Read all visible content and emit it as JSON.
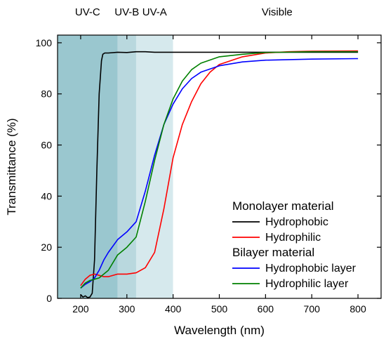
{
  "chart_data": {
    "type": "line",
    "title": "",
    "xlabel": "Wavelength (nm)",
    "ylabel": "Transmittance (%)",
    "xlim": [
      150,
      850
    ],
    "ylim": [
      0,
      103
    ],
    "x_ticks": [
      200,
      300,
      400,
      500,
      600,
      700,
      800
    ],
    "y_ticks": [
      0,
      20,
      40,
      60,
      80,
      100
    ],
    "grid": false,
    "legend_placement": "bottom-right",
    "regions": [
      {
        "label": "UV-C",
        "from": 150,
        "to": 280,
        "color": "#9ac7cf"
      },
      {
        "label": "UV-B",
        "from": 280,
        "to": 320,
        "color": "#b9d8de"
      },
      {
        "label": "UV-A",
        "from": 320,
        "to": 400,
        "color": "#d6e9ed"
      },
      {
        "label": "Visible",
        "from": 400,
        "to": 850,
        "color": "#ffffff"
      }
    ],
    "legend_groups": [
      {
        "title": "Monolayer material",
        "series": [
          "Hydrophobic",
          "Hydrophilic"
        ]
      },
      {
        "title": "Bilayer material",
        "series": [
          "Hydrophobic layer",
          "Hydrophilic layer"
        ]
      }
    ],
    "series": [
      {
        "name": "Hydrophobic",
        "color": "#000000",
        "x": [
          200,
          205,
          210,
          215,
          220,
          225,
          230,
          235,
          240,
          245,
          248,
          252,
          260,
          280,
          300,
          320,
          340,
          360,
          400,
          500,
          600,
          700,
          800
        ],
        "y": [
          1.5,
          0.5,
          1.0,
          0.3,
          0.5,
          2,
          15,
          50,
          80,
          93,
          95.5,
          96,
          96,
          96.3,
          96.2,
          96.5,
          96.5,
          96.3,
          96.3,
          96.3,
          96.3,
          96.3,
          96.3
        ]
      },
      {
        "name": "Hydrophilic",
        "color": "#ff0000",
        "x": [
          200,
          210,
          220,
          230,
          240,
          250,
          260,
          280,
          300,
          320,
          340,
          360,
          380,
          400,
          420,
          440,
          460,
          480,
          500,
          550,
          600,
          650,
          700,
          800
        ],
        "y": [
          5,
          7.5,
          9,
          9.5,
          9,
          8.5,
          8.5,
          9.5,
          9.5,
          10,
          12,
          18,
          35,
          55,
          68,
          77,
          84,
          88.5,
          91.5,
          94.5,
          96,
          96.5,
          96.7,
          96.8
        ]
      },
      {
        "name": "Hydrophobic layer",
        "color": "#0000ff",
        "x": [
          200,
          210,
          220,
          230,
          240,
          250,
          260,
          280,
          300,
          320,
          340,
          360,
          380,
          400,
          420,
          440,
          460,
          500,
          550,
          600,
          700,
          800
        ],
        "y": [
          4,
          5.5,
          6.5,
          8,
          11,
          15,
          18,
          23,
          26,
          30,
          42,
          56,
          68,
          76,
          82,
          86,
          88.5,
          91,
          92.5,
          93.2,
          93.6,
          93.8
        ]
      },
      {
        "name": "Hydrophilic layer",
        "color": "#008000",
        "x": [
          200,
          210,
          220,
          230,
          240,
          250,
          260,
          280,
          300,
          320,
          340,
          360,
          380,
          400,
          420,
          440,
          460,
          500,
          550,
          600,
          700,
          800
        ],
        "y": [
          4,
          6,
          7,
          7.5,
          8,
          9.5,
          11,
          17,
          20,
          24,
          38,
          54,
          68,
          78,
          85,
          89.5,
          92,
          94.5,
          95.5,
          96.2,
          96.5,
          96.5
        ]
      }
    ]
  }
}
